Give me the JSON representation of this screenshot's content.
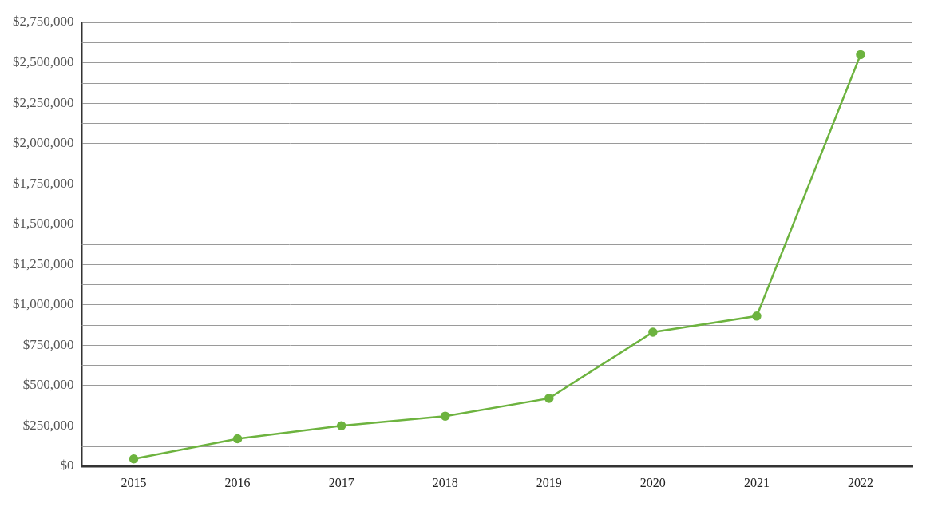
{
  "chart_data": {
    "type": "line",
    "categories": [
      "2015",
      "2016",
      "2017",
      "2018",
      "2019",
      "2020",
      "2021",
      "2022"
    ],
    "values": [
      45000,
      170000,
      250000,
      310000,
      420000,
      830000,
      930000,
      2550000
    ],
    "color": "#6db33f",
    "marker": "circle",
    "ylim": [
      0,
      2750000
    ],
    "yticks": [
      {
        "value": 0,
        "label": "$0"
      },
      {
        "value": 250000,
        "label": "$250,000"
      },
      {
        "value": 500000,
        "label": "$500,000"
      },
      {
        "value": 750000,
        "label": "$750,000"
      },
      {
        "value": 1000000,
        "label": "$1,000,000"
      },
      {
        "value": 1250000,
        "label": "$1,250,000"
      },
      {
        "value": 1500000,
        "label": "$1,500,000"
      },
      {
        "value": 1750000,
        "label": "$1,750,000"
      },
      {
        "value": 2000000,
        "label": "$2,000,000"
      },
      {
        "value": 2250000,
        "label": "$2,250,000"
      },
      {
        "value": 2500000,
        "label": "$2,500,000"
      },
      {
        "value": 2750000,
        "label": "$2,750,000"
      }
    ],
    "grid": true
  }
}
